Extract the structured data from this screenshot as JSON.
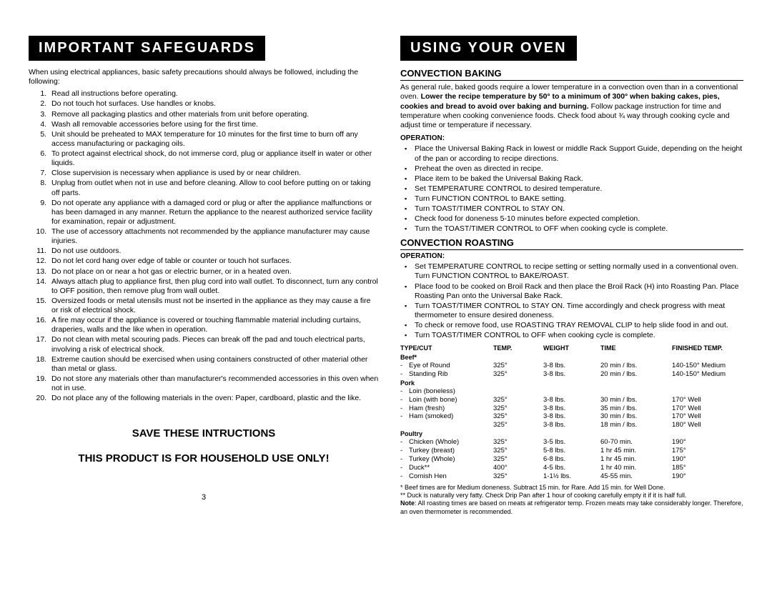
{
  "left": {
    "header": "IMPORTANT SAFEGUARDS",
    "intro": "When using electrical appliances, basic safety precautions should always be followed, including the following:",
    "items": [
      "Read all instructions before operating.",
      "Do not touch hot surfaces.  Use handles or knobs.",
      "Remove all packaging plastics and other materials from unit before operating.",
      "Wash all removable accessories before using for the first time.",
      "Unit should be preheated to MAX temperature for 10 minutes for the first time to burn off any access manufacturing or packaging oils.",
      "To protect against electrical shock, do not immerse cord, plug or appliance itself in water or other liquids.",
      "Close supervision is necessary when appliance is used by or near children.",
      "Unplug from outlet when not in use and before cleaning.  Allow to cool before putting on or taking off parts.",
      "Do not operate any appliance with a damaged cord or plug or after the appliance malfunctions or has been damaged in any manner. Return the appliance to the nearest authorized service facility for examination, repair or adjustment.",
      "The use of accessory attachments not recommended by the appliance manufacturer may cause injuries.",
      "Do not use outdoors.",
      "Do not let cord hang over edge of table or counter or touch hot surfaces.",
      "Do not place on or near a hot gas or electric burner, or in a heated oven.",
      "Always attach plug to appliance first, then plug cord into wall outlet.  To disconnect, turn any control to OFF position, then remove plug from wall outlet.",
      "Oversized foods or metal utensils must not be inserted in the appliance as they may cause a fire or risk of electrical shock.",
      "A fire may occur if the appliance is covered or touching flammable material including curtains, draperies, walls and the like when in operation.",
      "Do not clean with metal scouring pads.  Pieces can break off the pad and touch electrical parts, involving a risk of electrical shock.",
      "Extreme caution should be exercised when using containers constructed of other material other than metal or glass.",
      "Do not store any materials other than manufacturer's recommended accessories in this oven when not in use.",
      "Do not place any of the following materials in the oven: Paper, cardboard, plastic and the like."
    ],
    "save1": "SAVE THESE INTRUCTIONS",
    "save2": "THIS PRODUCT IS FOR HOUSEHOLD USE ONLY!",
    "pageNum": "3"
  },
  "right": {
    "header": "USING YOUR OVEN",
    "baking": {
      "title": "CONVECTION BAKING",
      "para_pre": "As general rule, baked goods require a lower temperature in a convection oven than in a conventional oven.  ",
      "para_bold": "Lower the recipe temperature by 50°  to a minimum of 300° when baking cakes, pies, cookies and bread to avoid over baking and burning.",
      "para_post": "  Follow package instruction for time and temperature when cooking convenience foods.  Check food about ¾ way through cooking cycle and adjust time or temperature if necessary.",
      "opLabel": "OPERATION:",
      "ops": [
        "Place the Universal Baking Rack in lowest or middle Rack Support Guide, depending on the height of the pan or according to recipe directions.",
        "Preheat the oven as directed in recipe.",
        "Place item to be baked the Universal Baking Rack.",
        "Set TEMPERATURE CONTROL to desired temperature.",
        "Turn FUNCTION CONTROL to BAKE setting.",
        "Turn TOAST/TIMER CONTROL to STAY ON.",
        "Check food for doneness 5-10 minutes before expected completion.",
        "Turn the TOAST/TIMER CONTROL to OFF when cooking cycle is complete."
      ]
    },
    "roasting": {
      "title": "CONVECTION ROASTING",
      "opLabel": "OPERATION:",
      "ops": [
        "Set TEMPERATURE CONTROL to recipe setting or setting normally used in a conventional oven.  Turn FUNCTION CONTROL to BAKE/ROAST.",
        "Place food to be cooked on Broil Rack and then place the Broil Rack (H) into Roasting Pan.  Place Roasting Pan onto the Universal Bake Rack.",
        "Turn TOAST/TIMER CONTROL to STAY ON.  Time accordingly and check progress with meat thermometer to ensure desired doneness.",
        "To check or remove food, use ROASTING TRAY REMOVAL CLIP to help slide food in and out.",
        "Turn TOAST/TIMER CONTROL to OFF when cooking cycle is complete."
      ]
    },
    "table": {
      "headers": {
        "c1": "TYPE/CUT",
        "c2": "TEMP.",
        "c3": "WEIGHT",
        "c4": "TIME",
        "c5": "FINISHED TEMP."
      },
      "groups": [
        {
          "cat": "Beef*",
          "rows": [
            {
              "c1": "Eye of Round",
              "c2": "325°",
              "c3": "3-8 lbs.",
              "c4": "20 min / lbs.",
              "c5": "140-150° Medium"
            },
            {
              "c1": "Standing Rib",
              "c2": "325°",
              "c3": "3-8 lbs.",
              "c4": "20 min / lbs.",
              "c5": "140-150° Medium"
            }
          ]
        },
        {
          "cat": "Pork",
          "rows": [
            {
              "c1": "Loin (boneless)",
              "c2": "",
              "c3": "",
              "c4": "",
              "c5": ""
            },
            {
              "c1": "Loin (with bone)",
              "c2": "325°",
              "c3": "3-8 lbs.",
              "c4": "30 min / lbs.",
              "c5": "170° Well"
            },
            {
              "c1": "Ham (fresh)",
              "c2": "325°",
              "c3": "3-8 lbs.",
              "c4": "35 min / lbs.",
              "c5": "170° Well"
            },
            {
              "c1": "Ham (smoked)",
              "c2": "325°",
              "c3": "3-8 lbs.",
              "c4": "30 min / lbs.",
              "c5": "170° Well"
            },
            {
              "c1": "",
              "c2": "325°",
              "c3": "3-8 lbs.",
              "c4": "18 min / lbs.",
              "c5": "180° Well"
            }
          ]
        },
        {
          "cat": "Poultry",
          "rows": [
            {
              "c1": "Chicken (Whole)",
              "c2": "325°",
              "c3": "3-5 lbs.",
              "c4": "60-70 min.",
              "c5": "190°"
            },
            {
              "c1": "Turkey (breast)",
              "c2": "325°",
              "c3": "5-8 lbs.",
              "c4": "1 hr 45 min.",
              "c5": "175°"
            },
            {
              "c1": "Turkey (Whole)",
              "c2": "325°",
              "c3": "6-8 lbs.",
              "c4": "1 hr 45 min.",
              "c5": "190°"
            },
            {
              "c1": "Duck**",
              "c2": "400°",
              "c3": "4-5 lbs.",
              "c4": "1 hr 40 min.",
              "c5": "185°"
            },
            {
              "c1": "Cornish Hen",
              "c2": "325°",
              "c3": "1-1½ lbs.",
              "c4": "45-55 min.",
              "c5": "190°"
            }
          ]
        }
      ]
    },
    "footnotes": {
      "f1": "* Beef times are for Medium doneness.  Subtract 15 min. for Rare.  Add 15 min. for Well Done.",
      "f2": "** Duck is naturally very fatty.  Check Drip Pan after 1 hour of cooking carefully empty it if it is half full.",
      "noteLabel": "Note",
      "noteText": ":  All roasting times are based on meats at refrigerator temp.  Frozen meats may take considerably longer.  Therefore, an oven thermometer is recommended."
    }
  }
}
